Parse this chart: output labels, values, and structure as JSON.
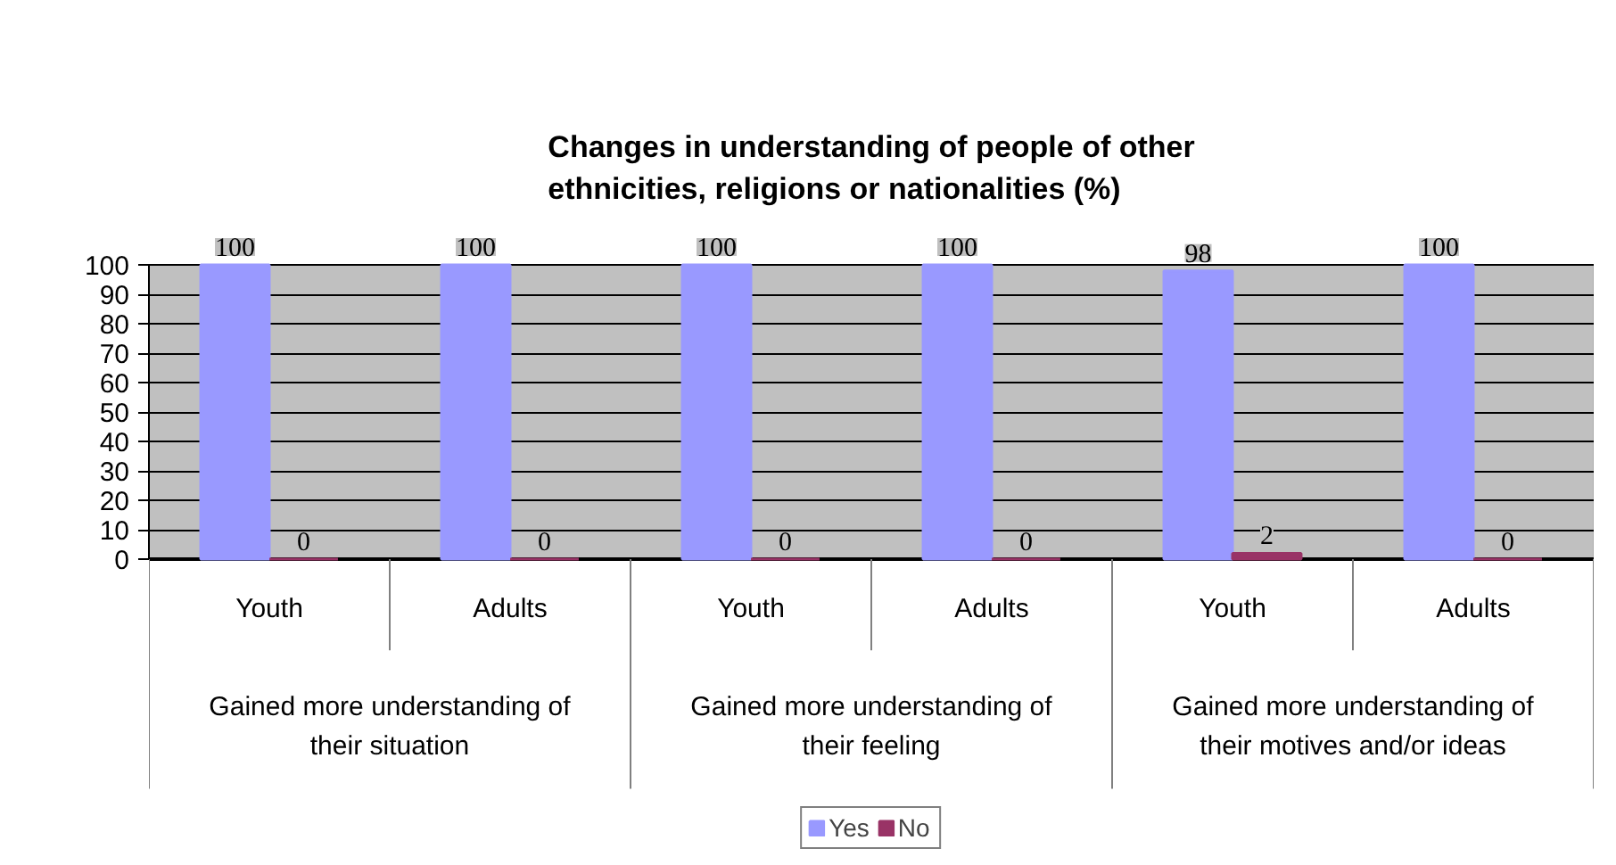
{
  "chart_data": {
    "type": "bar",
    "title": "Changes in understanding of people of other ethnicities, religions or nationalities (%)",
    "categories": [
      "Youth",
      "Adults",
      "Youth",
      "Adults",
      "Youth",
      "Adults"
    ],
    "series": [
      {
        "name": "Yes",
        "color": "#9999ff",
        "values": [
          100,
          100,
          100,
          100,
          98,
          100
        ]
      },
      {
        "name": "No",
        "color": "#993366",
        "values": [
          0,
          0,
          0,
          0,
          2,
          0
        ]
      }
    ],
    "annotations": [
      "Gained more understanding of their situation",
      "Gained more understanding of their feeling",
      "Gained more understanding of their motives and/or ideas"
    ],
    "ylim": [
      0,
      100
    ],
    "yticks": [
      0,
      10,
      20,
      30,
      40,
      50,
      60,
      70,
      80,
      90,
      100
    ],
    "grid": "y",
    "legend": "bottom",
    "data_labels": true
  }
}
